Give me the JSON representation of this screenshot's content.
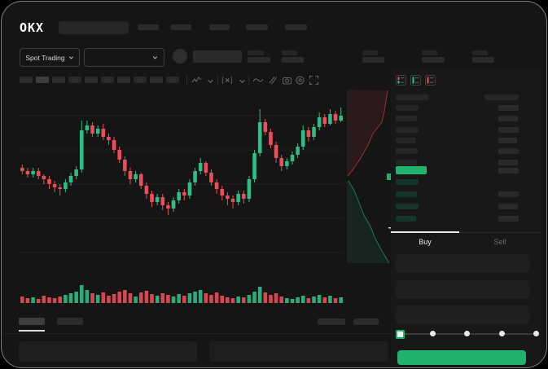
{
  "brand": {
    "logo_text": "OKX"
  },
  "market_selector": {
    "label": "Spot Trading"
  },
  "order_panel": {
    "buy_label": "Buy",
    "sell_label": "Sell"
  },
  "colors": {
    "background": "#151515",
    "panel": "#181818",
    "accent_green": "#21b26d",
    "candle_up": "#2ebd85",
    "candle_down": "#ec4d58",
    "skeleton": "#2b2b2b"
  },
  "orderbook_skeleton": {
    "ask_rows": [
      [
        28,
        25
      ],
      [
        26,
        24
      ],
      [
        28,
        25
      ],
      [
        25,
        23
      ],
      [
        27,
        25
      ],
      [
        26,
        24
      ]
    ],
    "bid_rows": [
      [
        28,
        0
      ],
      [
        26,
        25
      ],
      [
        28,
        24
      ],
      [
        25,
        25
      ]
    ],
    "price_row_width": 38
  },
  "chart_data": {
    "type": "candlestick-with-volume",
    "note": "no numeric axis labels visible; values on relative 0-100 scale read from pixel positions",
    "ylim": [
      0,
      100
    ],
    "grid": true,
    "candles_ochl": [
      [
        57,
        55,
        59,
        53
      ],
      [
        55,
        53,
        57,
        51
      ],
      [
        53,
        55,
        57,
        51
      ],
      [
        55,
        52,
        57,
        50
      ],
      [
        52,
        50,
        53,
        47
      ],
      [
        50,
        47,
        52,
        44
      ],
      [
        47,
        45,
        49,
        42
      ],
      [
        45,
        44,
        47,
        40
      ],
      [
        44,
        48,
        50,
        42
      ],
      [
        48,
        52,
        54,
        46
      ],
      [
        52,
        56,
        58,
        50
      ],
      [
        56,
        80,
        86,
        54
      ],
      [
        80,
        83,
        86,
        78
      ],
      [
        83,
        78,
        85,
        76
      ],
      [
        78,
        81,
        83,
        76
      ],
      [
        81,
        76,
        84,
        74
      ],
      [
        76,
        74,
        78,
        71
      ],
      [
        74,
        68,
        76,
        66
      ],
      [
        68,
        62,
        70,
        60
      ],
      [
        62,
        55,
        64,
        52
      ],
      [
        55,
        50,
        57,
        47
      ],
      [
        50,
        53,
        55,
        48
      ],
      [
        53,
        46,
        54,
        44
      ],
      [
        46,
        41,
        48,
        38
      ],
      [
        41,
        36,
        43,
        33
      ],
      [
        36,
        39,
        41,
        34
      ],
      [
        39,
        34,
        41,
        31
      ],
      [
        34,
        32,
        36,
        28
      ],
      [
        32,
        37,
        39,
        30
      ],
      [
        37,
        42,
        44,
        35
      ],
      [
        42,
        40,
        44,
        37
      ],
      [
        40,
        48,
        50,
        38
      ],
      [
        48,
        55,
        57,
        46
      ],
      [
        55,
        60,
        63,
        53
      ],
      [
        60,
        54,
        61,
        52
      ],
      [
        54,
        48,
        56,
        46
      ],
      [
        48,
        44,
        50,
        41
      ],
      [
        44,
        40,
        46,
        37
      ],
      [
        40,
        38,
        42,
        34
      ],
      [
        38,
        36,
        40,
        32
      ],
      [
        36,
        41,
        43,
        34
      ],
      [
        41,
        38,
        43,
        35
      ],
      [
        38,
        50,
        52,
        36
      ],
      [
        50,
        66,
        68,
        48
      ],
      [
        66,
        85,
        93,
        64
      ],
      [
        85,
        79,
        87,
        77
      ],
      [
        79,
        71,
        81,
        69
      ],
      [
        71,
        63,
        73,
        60
      ],
      [
        63,
        58,
        65,
        55
      ],
      [
        58,
        61,
        63,
        56
      ],
      [
        61,
        65,
        67,
        59
      ],
      [
        65,
        70,
        72,
        63
      ],
      [
        70,
        80,
        83,
        68
      ],
      [
        80,
        76,
        82,
        73
      ],
      [
        76,
        82,
        84,
        74
      ],
      [
        82,
        88,
        91,
        80
      ],
      [
        88,
        84,
        90,
        82
      ],
      [
        84,
        90,
        93,
        83
      ],
      [
        90,
        86,
        92,
        84
      ],
      [
        86,
        89,
        94,
        85
      ]
    ],
    "volume": [
      8,
      6,
      7,
      5,
      9,
      7,
      6,
      8,
      10,
      12,
      14,
      22,
      16,
      12,
      10,
      13,
      9,
      11,
      14,
      16,
      12,
      8,
      13,
      15,
      11,
      9,
      12,
      10,
      8,
      11,
      9,
      12,
      14,
      16,
      12,
      10,
      13,
      9,
      7,
      6,
      8,
      7,
      10,
      14,
      20,
      13,
      10,
      12,
      8,
      6,
      5,
      7,
      9,
      6,
      8,
      10,
      7,
      9,
      6,
      7
    ],
    "depth_panel": {
      "asks_side": "top-red",
      "bids_side": "bottom-green",
      "last_price_marker": "green-tag-right-mid"
    }
  }
}
